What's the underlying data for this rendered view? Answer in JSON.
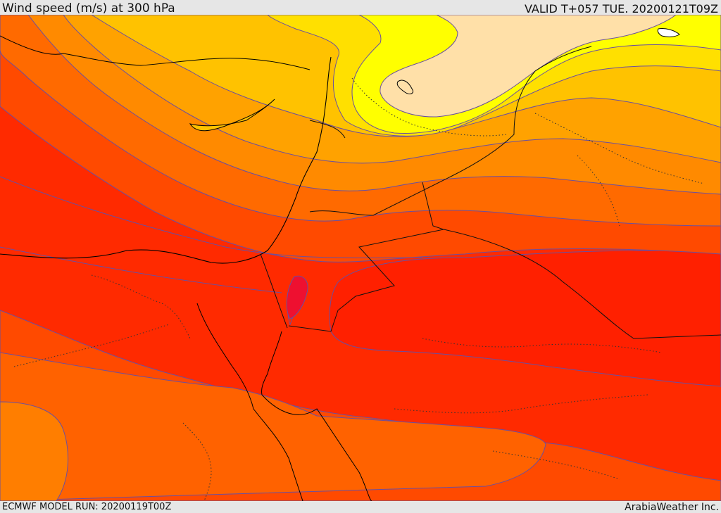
{
  "header": {
    "title": "Wind speed (m/s) at 300 hPa",
    "valid": "VALID T+057 TUE. 20200121T09Z"
  },
  "footer": {
    "model_run": "ECMWF MODEL RUN: 20200119T00Z",
    "provider": "ArabiaWeather Inc."
  },
  "map": {
    "variable": "wind-speed",
    "level_hpa": 300,
    "palette": {
      "band_1": "#ffe0a8",
      "band_2": "#ffff00",
      "band_3": "#ffe000",
      "band_4": "#ffc000",
      "band_5": "#ffa000",
      "band_6": "#ff8000",
      "band_7": "#ff6000",
      "band_8": "#ff4000",
      "band_9": "#ff2000",
      "band_10": "#ee1030",
      "contour": "#6a4fa0",
      "coastline": "#000000",
      "border": "#1a1a1a"
    }
  }
}
